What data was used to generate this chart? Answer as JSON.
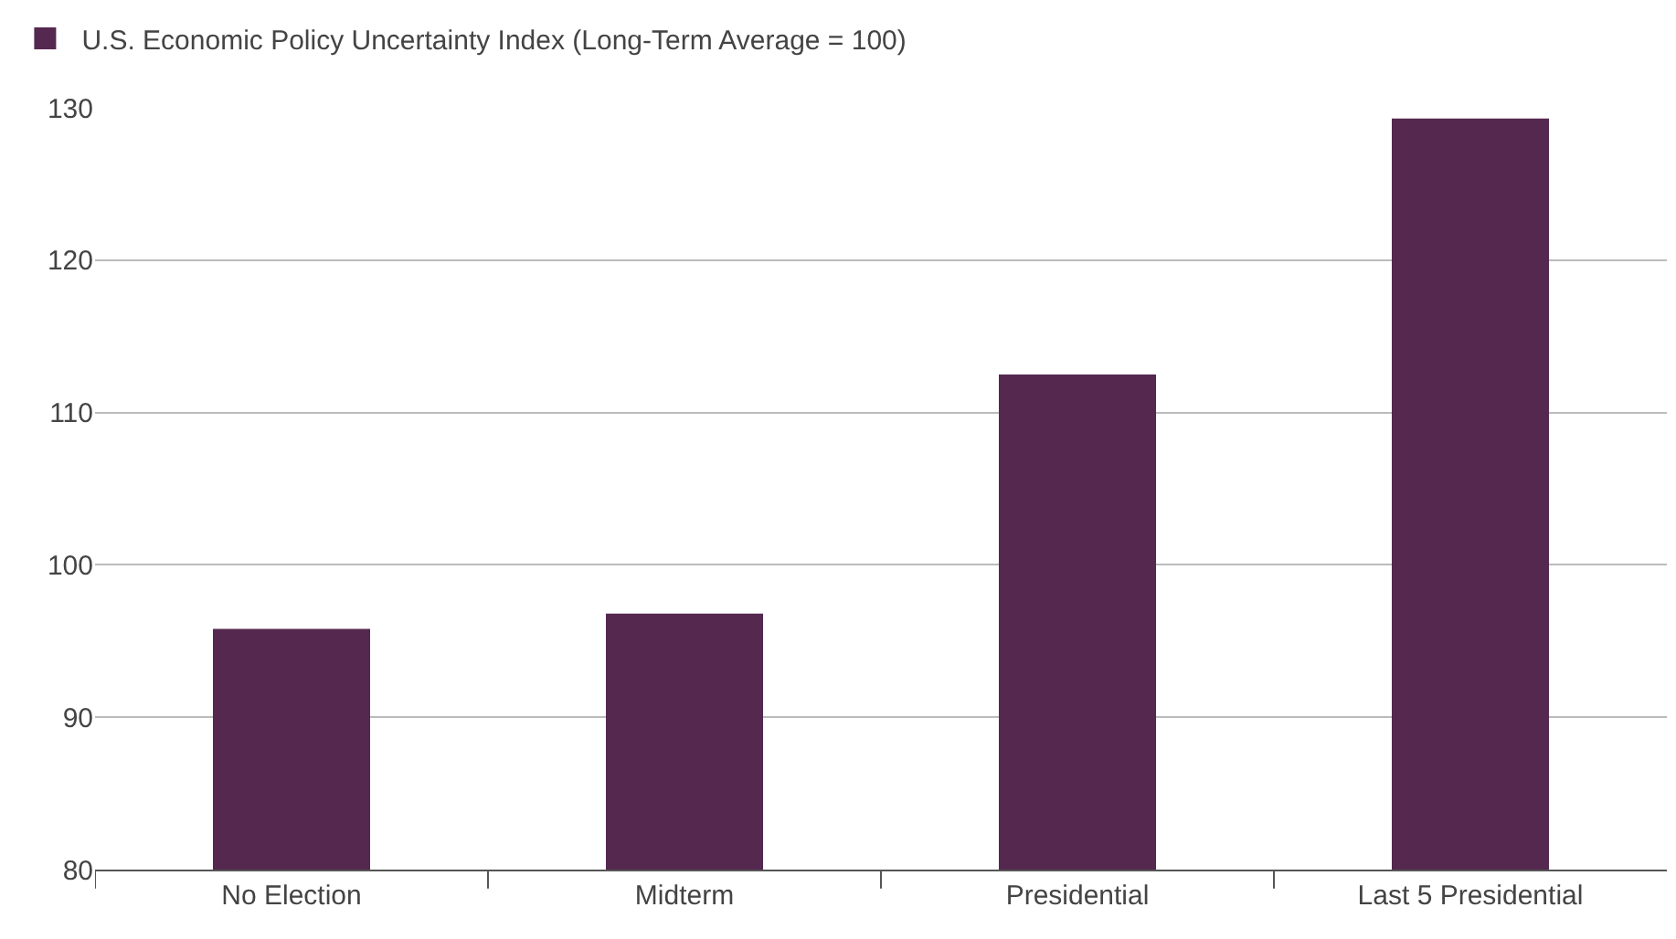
{
  "chart_data": {
    "type": "bar",
    "categories": [
      "No Election",
      "Midterm",
      "Presidential",
      "Last 5 Presidential"
    ],
    "series": [
      {
        "name": "U.S. Economic Policy Uncertainty Index (Long-Term Average = 100)",
        "color": "#54284f",
        "values": [
          95.8,
          96.8,
          112.5,
          129.3
        ]
      }
    ],
    "ylim": [
      80,
      130
    ],
    "yticks": [
      80,
      90,
      100,
      110,
      120,
      130
    ],
    "grid": "y",
    "legend": "top left"
  }
}
